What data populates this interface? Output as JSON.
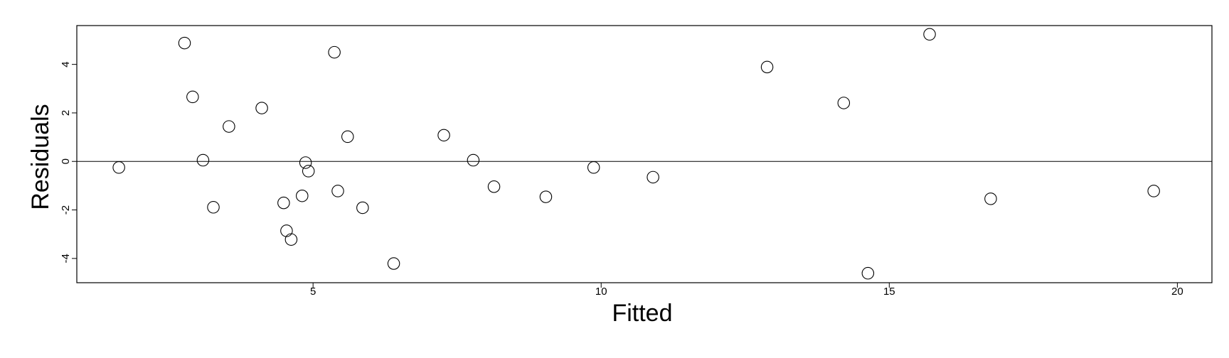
{
  "chart_data": {
    "type": "scatter",
    "title": "",
    "xlabel": "Fitted",
    "ylabel": "Residuals",
    "xlim": [
      0.9,
      20.6
    ],
    "ylim": [
      -5.0,
      5.6
    ],
    "x_ticks": [
      5,
      10,
      15,
      20
    ],
    "x_tick_labels": [
      "5",
      "10",
      "15",
      "20"
    ],
    "y_ticks": [
      -4,
      -2,
      0,
      2,
      4
    ],
    "y_tick_labels": [
      "-4",
      "-2",
      "0",
      "2",
      "4"
    ],
    "reference_line_y": 0,
    "marker": "open-circle",
    "grid": false,
    "legend": "none",
    "colors": {
      "stroke": "#000000",
      "background": "#ffffff"
    },
    "points": [
      {
        "x": 1.63,
        "y": -0.25
      },
      {
        "x": 2.77,
        "y": 4.88
      },
      {
        "x": 2.91,
        "y": 2.66
      },
      {
        "x": 3.09,
        "y": 0.05
      },
      {
        "x": 3.27,
        "y": -1.89
      },
      {
        "x": 3.54,
        "y": 1.44
      },
      {
        "x": 4.11,
        "y": 2.2
      },
      {
        "x": 4.49,
        "y": -1.71
      },
      {
        "x": 4.54,
        "y": -2.86
      },
      {
        "x": 4.62,
        "y": -3.22
      },
      {
        "x": 4.81,
        "y": -1.42
      },
      {
        "x": 4.87,
        "y": -0.05
      },
      {
        "x": 4.92,
        "y": -0.4
      },
      {
        "x": 5.37,
        "y": 4.5
      },
      {
        "x": 5.43,
        "y": -1.22
      },
      {
        "x": 5.6,
        "y": 1.02
      },
      {
        "x": 5.86,
        "y": -1.91
      },
      {
        "x": 6.4,
        "y": -4.21
      },
      {
        "x": 7.27,
        "y": 1.08
      },
      {
        "x": 7.78,
        "y": 0.05
      },
      {
        "x": 8.14,
        "y": -1.04
      },
      {
        "x": 9.04,
        "y": -1.46
      },
      {
        "x": 9.87,
        "y": -0.25
      },
      {
        "x": 10.9,
        "y": -0.65
      },
      {
        "x": 12.88,
        "y": 3.89
      },
      {
        "x": 14.21,
        "y": 2.41
      },
      {
        "x": 14.63,
        "y": -4.61
      },
      {
        "x": 15.7,
        "y": 5.24
      },
      {
        "x": 16.76,
        "y": -1.54
      },
      {
        "x": 19.59,
        "y": -1.22
      }
    ]
  }
}
